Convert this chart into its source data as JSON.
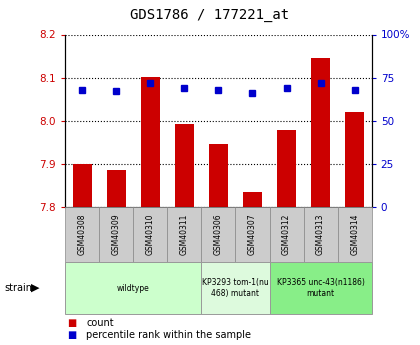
{
  "title": "GDS1786 / 177221_at",
  "samples": [
    "GSM40308",
    "GSM40309",
    "GSM40310",
    "GSM40311",
    "GSM40306",
    "GSM40307",
    "GSM40312",
    "GSM40313",
    "GSM40314"
  ],
  "count_values": [
    7.9,
    7.885,
    8.101,
    7.993,
    7.945,
    7.835,
    7.978,
    8.145,
    8.02
  ],
  "percentile_values": [
    68,
    67,
    72,
    69,
    68,
    66,
    69,
    72,
    68
  ],
  "ylim_left": [
    7.8,
    8.2
  ],
  "ylim_right": [
    0,
    100
  ],
  "yticks_left": [
    7.8,
    7.9,
    8.0,
    8.1,
    8.2
  ],
  "yticks_right": [
    0,
    25,
    50,
    75,
    100
  ],
  "strain_groups": [
    {
      "label": "wildtype",
      "start": 0,
      "end": 3,
      "color": "#ccffcc"
    },
    {
      "label": "KP3293 tom-1(nu\n468) mutant",
      "start": 4,
      "end": 5,
      "color": "#ddfadd"
    },
    {
      "label": "KP3365 unc-43(n1186)\nmutant",
      "start": 6,
      "end": 8,
      "color": "#88ee88"
    }
  ],
  "bar_color": "#cc0000",
  "dot_color": "#0000cc",
  "background_color": "#ffffff",
  "plot_bg_color": "#ffffff",
  "left_tick_color": "#cc0000",
  "right_tick_color": "#0000cc",
  "bar_bottom": 7.8,
  "sample_box_color": "#cccccc",
  "legend_count_color": "#cc0000",
  "legend_pct_color": "#0000cc"
}
